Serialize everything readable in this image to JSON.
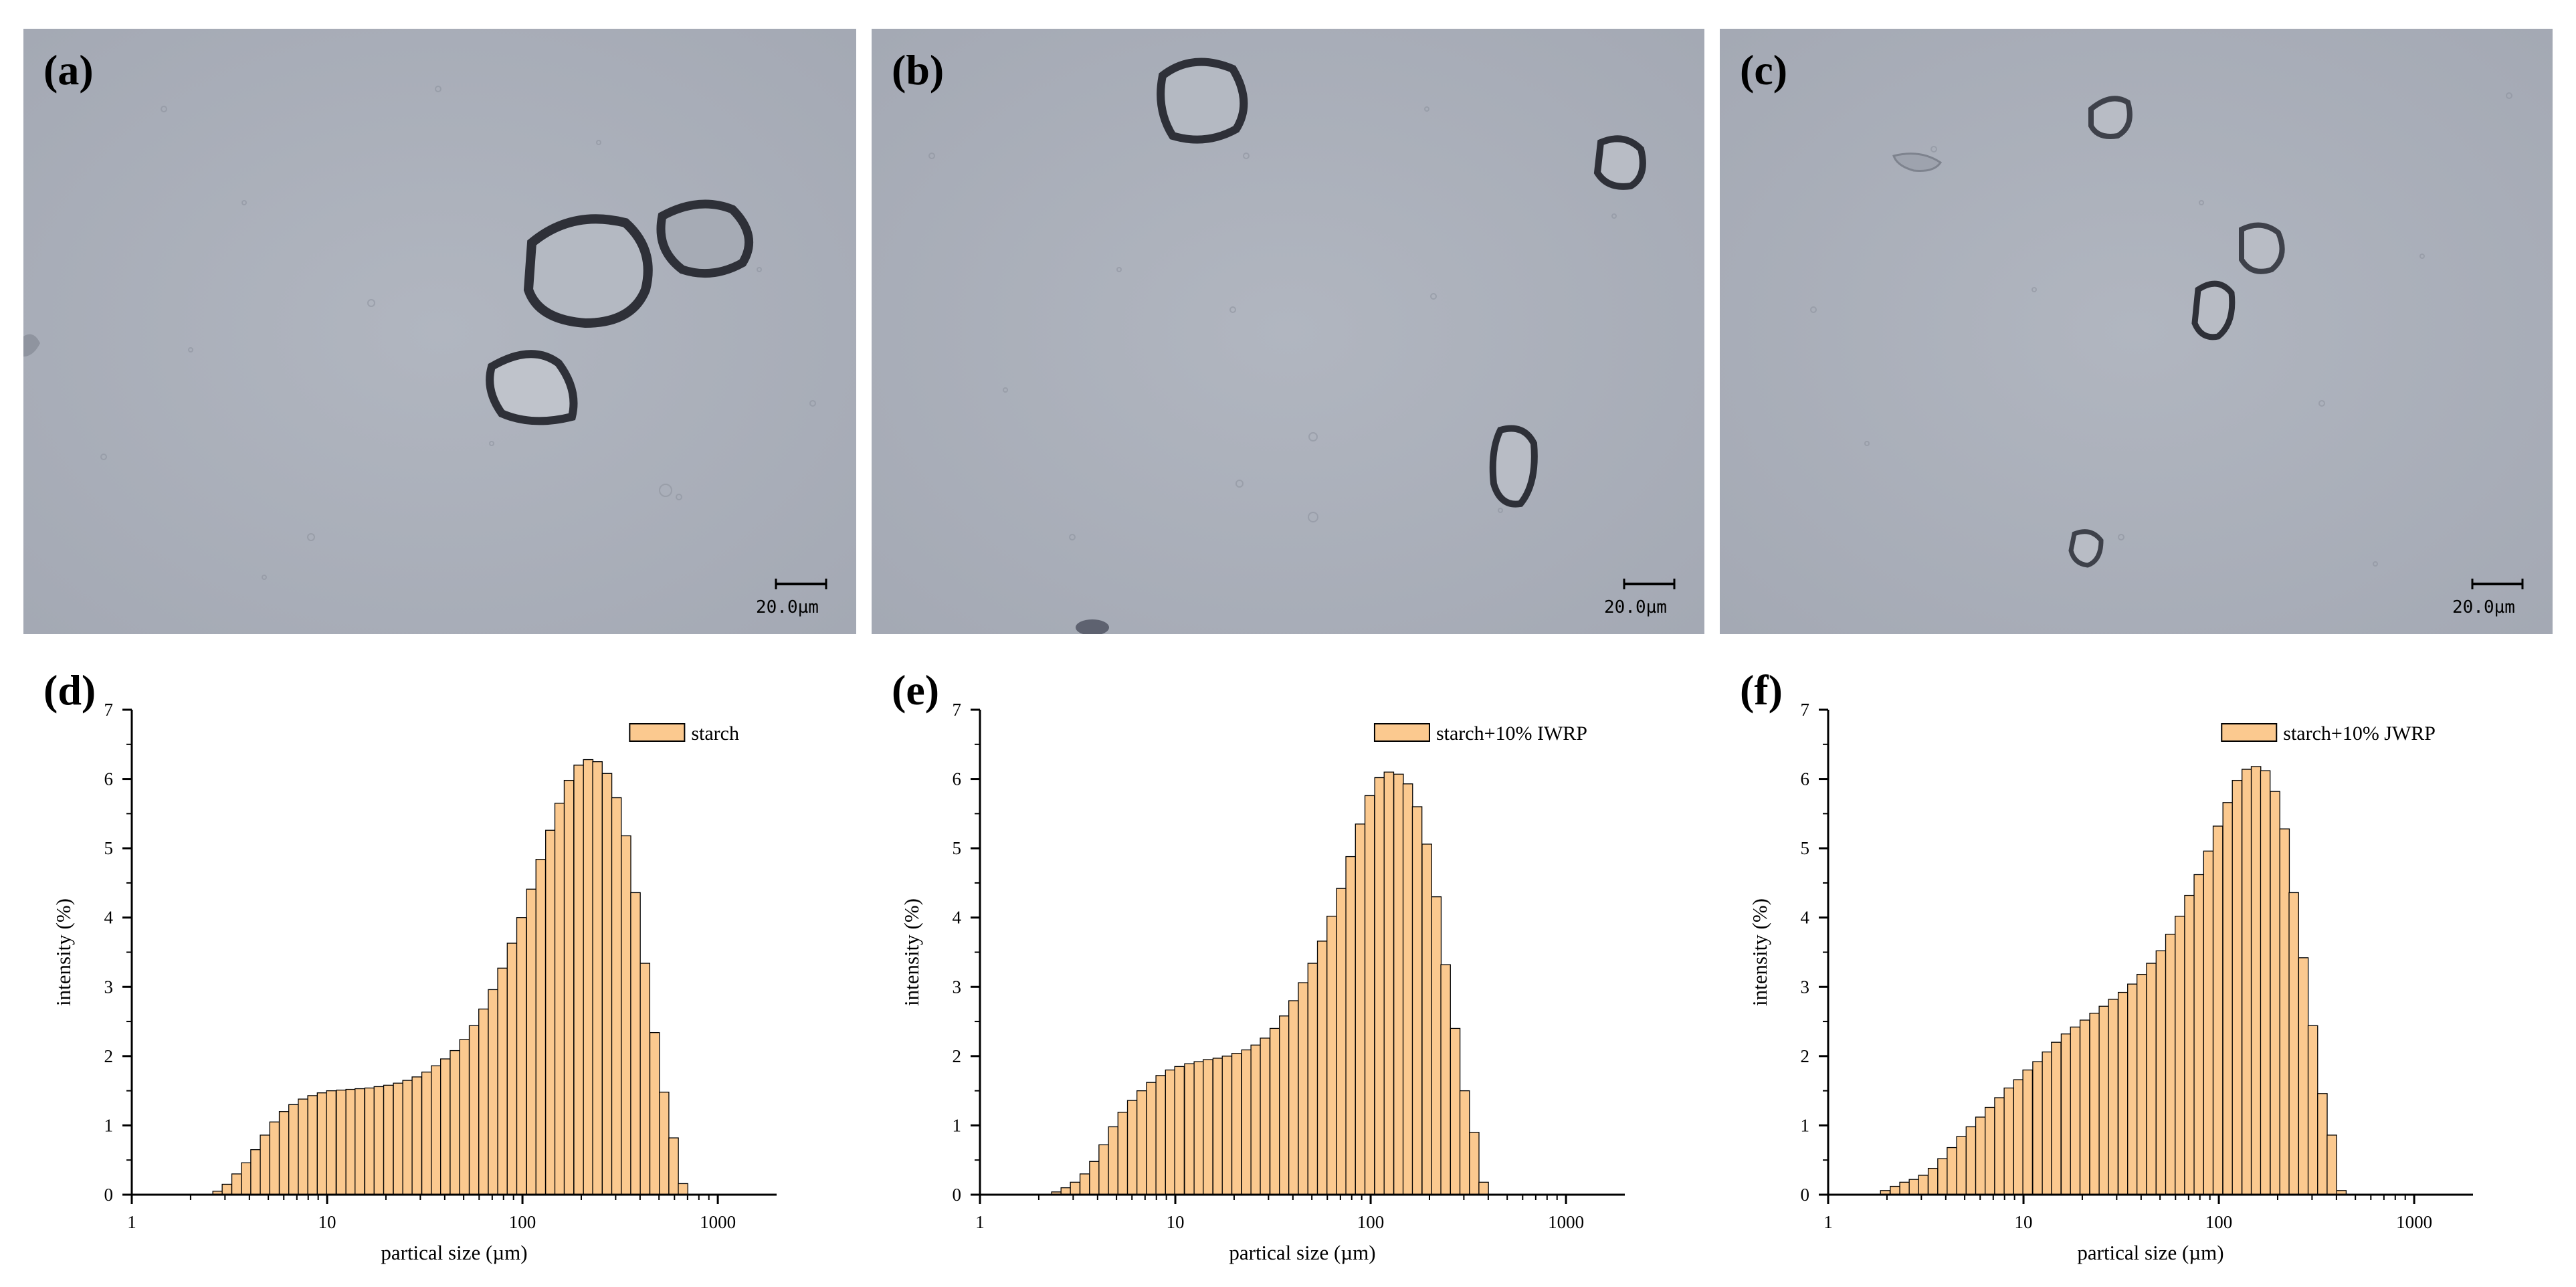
{
  "micrographs": [
    {
      "label": "(a)",
      "scale_bar": "20.0µm"
    },
    {
      "label": "(b)",
      "scale_bar": "20.0µm"
    },
    {
      "label": "(c)",
      "scale_bar": "20.0µm"
    }
  ],
  "colors": {
    "bar_fill": "#FBC98F",
    "bar_stroke": "#000000",
    "micrograph_bg": "#A9AEB9"
  },
  "chart_data": [
    {
      "label": "(d)",
      "type": "bar",
      "legend": "starch",
      "xlabel": "partical size (µm)",
      "ylabel": "intensity (%)",
      "x_scale": "log",
      "xlim": [
        1,
        2000
      ],
      "ylim": [
        0,
        7
      ],
      "x_ticks": [
        "1",
        "10",
        "100",
        "1000"
      ],
      "y_ticks": [
        "0",
        "1",
        "2",
        "3",
        "4",
        "5",
        "6",
        "7"
      ],
      "x": [
        2.75,
        3.07,
        3.44,
        3.85,
        4.3,
        4.81,
        5.38,
        6.02,
        6.73,
        7.53,
        8.42,
        9.42,
        10.5,
        11.8,
        13.2,
        14.7,
        16.5,
        18.4,
        20.6,
        23.1,
        25.8,
        28.8,
        32.3,
        36.1,
        40.3,
        45.1,
        50.5,
        56.5,
        63.2,
        70.7,
        79,
        88.4,
        98.9,
        111,
        124,
        139,
        155,
        173,
        194,
        217,
        242,
        271,
        303,
        339,
        379,
        424,
        475,
        531,
        594,
        664,
        743,
        831
      ],
      "values": [
        0.05,
        0.15,
        0.3,
        0.46,
        0.65,
        0.86,
        1.05,
        1.2,
        1.3,
        1.38,
        1.43,
        1.47,
        1.5,
        1.51,
        1.52,
        1.53,
        1.54,
        1.56,
        1.58,
        1.61,
        1.65,
        1.7,
        1.77,
        1.86,
        1.96,
        2.08,
        2.24,
        2.44,
        2.68,
        2.96,
        3.27,
        3.63,
        4.0,
        4.41,
        4.84,
        5.26,
        5.65,
        5.98,
        6.2,
        6.28,
        6.25,
        6.08,
        5.73,
        5.18,
        4.36,
        3.34,
        2.34,
        1.48,
        0.82,
        0.16,
        0,
        0
      ]
    },
    {
      "label": "(e)",
      "type": "bar",
      "legend": "starch+10% IWRP",
      "xlabel": "partical size (µm)",
      "ylabel": "intensity (%)",
      "x_scale": "log",
      "xlim": [
        1,
        2000
      ],
      "ylim": [
        0,
        7
      ],
      "x_ticks": [
        "1",
        "10",
        "100",
        "1000"
      ],
      "y_ticks": [
        "0",
        "1",
        "2",
        "3",
        "4",
        "5",
        "6",
        "7"
      ],
      "x": [
        2.46,
        2.75,
        3.07,
        3.44,
        3.85,
        4.3,
        4.81,
        5.38,
        6.02,
        6.73,
        7.53,
        8.42,
        9.42,
        10.5,
        11.8,
        13.2,
        14.7,
        16.5,
        18.4,
        20.6,
        23.1,
        25.8,
        28.8,
        32.3,
        36.1,
        40.3,
        45.1,
        50.5,
        56.5,
        63.2,
        70.7,
        79,
        88.4,
        98.9,
        111,
        124,
        139,
        155,
        173,
        194,
        217,
        242,
        271,
        303,
        339,
        379,
        424,
        475,
        531,
        594,
        664
      ],
      "values": [
        0.04,
        0.1,
        0.18,
        0.3,
        0.48,
        0.72,
        0.98,
        1.19,
        1.36,
        1.5,
        1.62,
        1.72,
        1.8,
        1.85,
        1.89,
        1.92,
        1.95,
        1.97,
        2.0,
        2.04,
        2.09,
        2.16,
        2.26,
        2.4,
        2.58,
        2.8,
        3.06,
        3.34,
        3.66,
        4.02,
        4.42,
        4.88,
        5.35,
        5.76,
        6.02,
        6.1,
        6.07,
        5.93,
        5.6,
        5.06,
        4.3,
        3.32,
        2.4,
        1.5,
        0.9,
        0.18,
        0,
        0,
        0,
        0,
        0
      ]
    },
    {
      "label": "(f)",
      "type": "bar",
      "legend": "starch+10% JWRP",
      "xlabel": "partical size (µm)",
      "ylabel": "intensity (%)",
      "x_scale": "log",
      "xlim": [
        1,
        2000
      ],
      "ylim": [
        0,
        7
      ],
      "x_ticks": [
        "1",
        "10",
        "100",
        "1000"
      ],
      "y_ticks": [
        "0",
        "1",
        "2",
        "3",
        "4",
        "5",
        "6",
        "7"
      ],
      "x": [
        1.96,
        2.2,
        2.46,
        2.75,
        3.07,
        3.44,
        3.85,
        4.3,
        4.81,
        5.38,
        6.02,
        6.73,
        7.53,
        8.42,
        9.42,
        10.5,
        11.8,
        13.2,
        14.7,
        16.5,
        18.4,
        20.6,
        23.1,
        25.8,
        28.8,
        32.3,
        36.1,
        40.3,
        45.1,
        50.5,
        56.5,
        63.2,
        70.7,
        79,
        88.4,
        98.9,
        111,
        124,
        139,
        155,
        173,
        194,
        217,
        242,
        271,
        303,
        339,
        379,
        424,
        475,
        531,
        594
      ],
      "values": [
        0.06,
        0.12,
        0.18,
        0.22,
        0.28,
        0.38,
        0.52,
        0.68,
        0.84,
        0.98,
        1.12,
        1.26,
        1.4,
        1.54,
        1.66,
        1.8,
        1.92,
        2.06,
        2.2,
        2.32,
        2.42,
        2.52,
        2.62,
        2.72,
        2.82,
        2.92,
        3.04,
        3.18,
        3.34,
        3.52,
        3.76,
        4.02,
        4.32,
        4.62,
        4.96,
        5.32,
        5.66,
        5.98,
        6.14,
        6.18,
        6.12,
        5.82,
        5.28,
        4.36,
        3.42,
        2.44,
        1.46,
        0.86,
        0.06,
        0,
        0,
        0
      ]
    }
  ]
}
